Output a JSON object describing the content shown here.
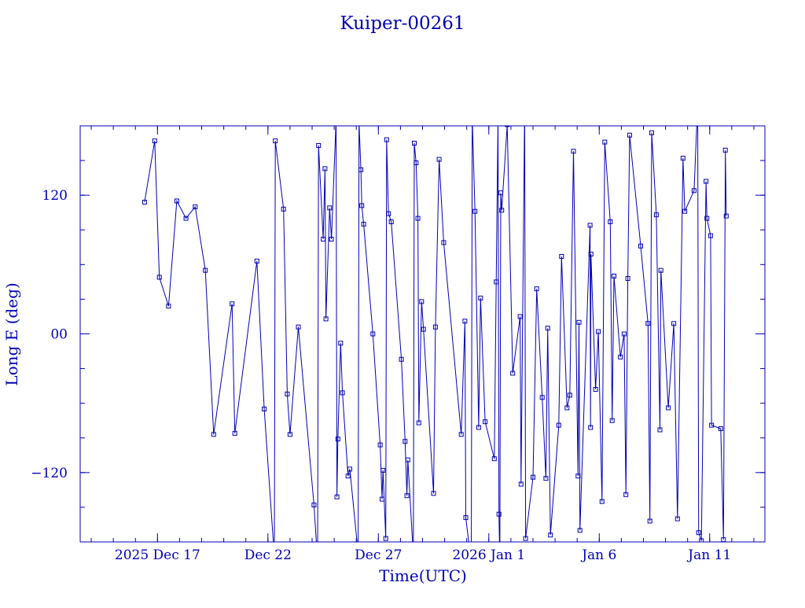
{
  "chart_data": {
    "type": "line",
    "title": "Kuiper-00261",
    "xlabel": "Time(UTC)",
    "ylabel": "Long E (deg)",
    "xlim": [
      "2025-12-13T12:00:00Z",
      "2026-01-13T12:00:00Z"
    ],
    "ylim": [
      -180,
      180
    ],
    "x_ticks": [
      {
        "date": "2025-12-17",
        "label": "2025 Dec 17"
      },
      {
        "date": "2025-12-22",
        "label": "Dec 22"
      },
      {
        "date": "2025-12-27",
        "label": "Dec 27"
      },
      {
        "date": "2026-01-01",
        "label": "2026 Jan  1"
      },
      {
        "date": "2026-01-06",
        "label": "Jan  6"
      },
      {
        "date": "2026-01-11",
        "label": "Jan 11"
      }
    ],
    "y_ticks": [
      {
        "value": -120,
        "label": "−120"
      },
      {
        "value": 0,
        "label": "00"
      },
      {
        "value": 120,
        "label": "120"
      }
    ],
    "grid": false,
    "marker": "square",
    "wrap": true,
    "series": [
      {
        "points": [
          [
            "2025-12-16T10:00:00Z",
            114
          ],
          [
            "2025-12-16T21:00:00Z",
            167
          ],
          [
            "2025-12-17T02:00:00Z",
            49
          ],
          [
            "2025-12-17T12:00:00Z",
            24
          ],
          [
            "2025-12-17T21:00:00Z",
            115
          ],
          [
            "2025-12-18T07:00:00Z",
            100
          ],
          [
            "2025-12-18T17:00:00Z",
            110
          ],
          [
            "2025-12-19T04:00:00Z",
            55
          ],
          [
            "2025-12-19T13:00:00Z",
            -87
          ],
          [
            "2025-12-20T09:00:00Z",
            26
          ],
          [
            "2025-12-20T12:00:00Z",
            -86
          ],
          [
            "2025-12-21T12:00:00Z",
            63
          ],
          [
            "2025-12-21T20:00:00Z",
            -65
          ],
          [
            "2025-12-22T07:00:00Z",
            -193
          ],
          [
            "2025-12-22T08:00:00Z",
            167
          ],
          [
            "2025-12-22T17:00:00Z",
            108
          ],
          [
            "2025-12-22T21:00:00Z",
            -52
          ],
          [
            "2025-12-23T00:00:00Z",
            -87
          ],
          [
            "2025-12-23T09:00:00Z",
            6
          ],
          [
            "2025-12-24T02:00:00Z",
            -148
          ],
          [
            "2025-12-24T06:00:00Z",
            -197
          ],
          [
            "2025-12-24T07:00:00Z",
            163
          ],
          [
            "2025-12-24T12:00:00Z",
            82
          ],
          [
            "2025-12-24T14:00:00Z",
            143
          ],
          [
            "2025-12-24T15:00:00Z",
            13
          ],
          [
            "2025-12-24T19:00:00Z",
            109
          ],
          [
            "2025-12-24T21:00:00Z",
            82
          ],
          [
            "2025-12-25T02:00:00Z",
            185
          ],
          [
            "2025-12-25T03:00:00Z",
            -141
          ],
          [
            "2025-12-25T04:00:00Z",
            -91
          ],
          [
            "2025-12-25T07:00:00Z",
            -8
          ],
          [
            "2025-12-25T09:00:00Z",
            -51
          ],
          [
            "2025-12-25T15:00:00Z",
            -123
          ],
          [
            "2025-12-25T17:00:00Z",
            -117
          ],
          [
            "2025-12-26T02:00:00Z",
            -190
          ],
          [
            "2025-12-26T03:00:00Z",
            183
          ],
          [
            "2025-12-26T05:00:00Z",
            142
          ],
          [
            "2025-12-26T06:00:00Z",
            111
          ],
          [
            "2025-12-26T08:00:00Z",
            95
          ],
          [
            "2025-12-26T18:00:00Z",
            0
          ],
          [
            "2025-12-27T02:00:00Z",
            -96
          ],
          [
            "2025-12-27T04:00:00Z",
            -143
          ],
          [
            "2025-12-27T05:00:00Z",
            -118
          ],
          [
            "2025-12-27T08:00:00Z",
            -177
          ],
          [
            "2025-12-27T09:00:00Z",
            168
          ],
          [
            "2025-12-27T11:00:00Z",
            104
          ],
          [
            "2025-12-27T14:00:00Z",
            97
          ],
          [
            "2025-12-28T01:00:00Z",
            -22
          ],
          [
            "2025-12-28T05:00:00Z",
            -93
          ],
          [
            "2025-12-28T07:00:00Z",
            -140
          ],
          [
            "2025-12-28T08:00:00Z",
            -109
          ],
          [
            "2025-12-28T14:00:00Z",
            -192
          ],
          [
            "2025-12-28T15:00:00Z",
            165
          ],
          [
            "2025-12-28T17:00:00Z",
            148
          ],
          [
            "2025-12-28T19:00:00Z",
            100
          ],
          [
            "2025-12-28T20:00:00Z",
            -77
          ],
          [
            "2025-12-28T23:00:00Z",
            28
          ],
          [
            "2025-12-29T01:00:00Z",
            4
          ],
          [
            "2025-12-29T12:00:00Z",
            -138
          ],
          [
            "2025-12-29T14:00:00Z",
            6
          ],
          [
            "2025-12-29T18:00:00Z",
            151
          ],
          [
            "2025-12-29T23:00:00Z",
            79
          ],
          [
            "2025-12-30T18:00:00Z",
            -87
          ],
          [
            "2025-12-30T22:00:00Z",
            11
          ],
          [
            "2025-12-30T23:00:00Z",
            -159
          ],
          [
            "2025-12-31T05:00:00Z",
            -198
          ],
          [
            "2025-12-31T06:00:00Z",
            187
          ],
          [
            "2025-12-31T09:00:00Z",
            106
          ],
          [
            "2025-12-31T13:00:00Z",
            -81
          ],
          [
            "2025-12-31T15:00:00Z",
            31
          ],
          [
            "2025-12-31T20:00:00Z",
            -76
          ],
          [
            "2026-01-01T06:00:00Z",
            -108
          ],
          [
            "2026-01-01T08:00:00Z",
            45
          ],
          [
            "2026-01-01T10:00:00Z",
            186
          ],
          [
            "2026-01-01T11:00:00Z",
            -156
          ],
          [
            "2026-01-01T12:00:00Z",
            -198
          ],
          [
            "2026-01-01T13:00:00Z",
            122
          ],
          [
            "2026-01-01T14:00:00Z",
            107
          ],
          [
            "2026-01-01T20:00:00Z",
            181
          ],
          [
            "2026-01-02T02:00:00Z",
            -34
          ],
          [
            "2026-01-02T10:00:00Z",
            15
          ],
          [
            "2026-01-02T11:00:00Z",
            -130
          ],
          [
            "2026-01-02T15:00:00Z",
            196
          ],
          [
            "2026-01-02T16:00:00Z",
            -177
          ],
          [
            "2026-01-03T00:00:00Z",
            -124
          ],
          [
            "2026-01-03T04:00:00Z",
            39
          ],
          [
            "2026-01-03T10:00:00Z",
            -55
          ],
          [
            "2026-01-03T14:00:00Z",
            -125
          ],
          [
            "2026-01-03T16:00:00Z",
            5
          ],
          [
            "2026-01-03T19:00:00Z",
            -174
          ],
          [
            "2026-01-04T04:00:00Z",
            -79
          ],
          [
            "2026-01-04T07:00:00Z",
            67
          ],
          [
            "2026-01-04T13:00:00Z",
            -64
          ],
          [
            "2026-01-04T16:00:00Z",
            -53
          ],
          [
            "2026-01-04T20:00:00Z",
            158
          ],
          [
            "2026-01-05T01:00:00Z",
            -123
          ],
          [
            "2026-01-05T02:00:00Z",
            10
          ],
          [
            "2026-01-05T03:00:00Z",
            -170
          ],
          [
            "2026-01-05T14:00:00Z",
            94
          ],
          [
            "2026-01-05T14:30:00Z",
            -81
          ],
          [
            "2026-01-05T15:00:00Z",
            69
          ],
          [
            "2026-01-05T20:00:00Z",
            -48
          ],
          [
            "2026-01-05T23:00:00Z",
            2
          ],
          [
            "2026-01-06T03:00:00Z",
            -145
          ],
          [
            "2026-01-06T06:00:00Z",
            166
          ],
          [
            "2026-01-06T12:00:00Z",
            97
          ],
          [
            "2026-01-06T14:00:00Z",
            -75
          ],
          [
            "2026-01-06T16:00:00Z",
            50
          ],
          [
            "2026-01-06T23:00:00Z",
            -20
          ],
          [
            "2026-01-07T03:00:00Z",
            0
          ],
          [
            "2026-01-07T05:00:00Z",
            -139
          ],
          [
            "2026-01-07T07:00:00Z",
            48
          ],
          [
            "2026-01-07T09:00:00Z",
            172
          ],
          [
            "2026-01-07T21:00:00Z",
            76
          ],
          [
            "2026-01-08T05:00:00Z",
            9
          ],
          [
            "2026-01-08T07:00:00Z",
            -162
          ],
          [
            "2026-01-08T09:00:00Z",
            174
          ],
          [
            "2026-01-08T14:00:00Z",
            103
          ],
          [
            "2026-01-08T18:00:00Z",
            -83
          ],
          [
            "2026-01-08T19:00:00Z",
            55
          ],
          [
            "2026-01-09T03:00:00Z",
            -64
          ],
          [
            "2026-01-09T09:00:00Z",
            9
          ],
          [
            "2026-01-09T13:00:00Z",
            -160
          ],
          [
            "2026-01-09T19:00:00Z",
            152
          ],
          [
            "2026-01-09T21:00:00Z",
            106
          ],
          [
            "2026-01-10T07:00:00Z",
            124
          ],
          [
            "2026-01-10T11:00:00Z",
            200
          ],
          [
            "2026-01-10T12:00:00Z",
            -172
          ],
          [
            "2026-01-10T15:00:00Z",
            -179
          ],
          [
            "2026-01-10T20:00:00Z",
            132
          ],
          [
            "2026-01-10T21:00:00Z",
            100
          ],
          [
            "2026-01-11T01:00:00Z",
            85
          ],
          [
            "2026-01-11T02:00:00Z",
            -79
          ],
          [
            "2026-01-11T12:00:00Z",
            -82
          ],
          [
            "2026-01-11T15:00:00Z",
            -178
          ],
          [
            "2026-01-11T17:00:00Z",
            159
          ],
          [
            "2026-01-11T18:00:00Z",
            102
          ]
        ]
      }
    ]
  }
}
